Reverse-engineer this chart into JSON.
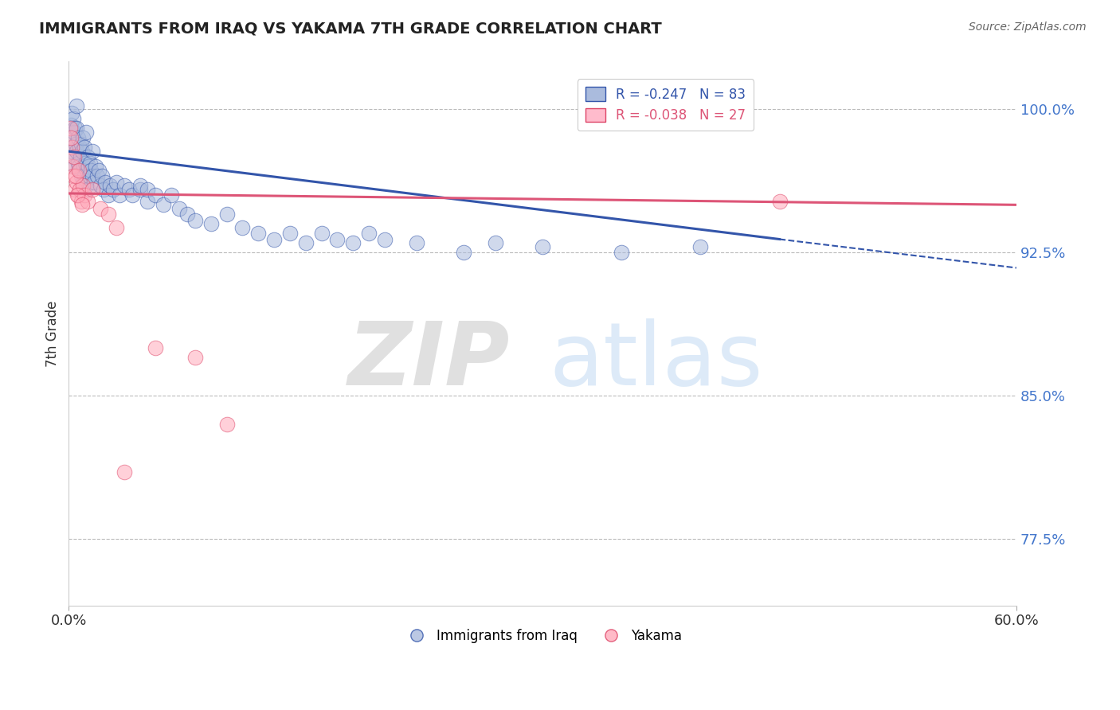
{
  "title": "IMMIGRANTS FROM IRAQ VS YAKAMA 7TH GRADE CORRELATION CHART",
  "source": "Source: ZipAtlas.com",
  "ylabel": "7th Grade",
  "xlim": [
    0.0,
    60.0
  ],
  "ylim": [
    74.0,
    102.5
  ],
  "yticks": [
    77.5,
    85.0,
    92.5,
    100.0
  ],
  "ytick_labels": [
    "77.5%",
    "85.0%",
    "92.5%",
    "100.0%"
  ],
  "legend_blue_label": "R = -0.247   N = 83",
  "legend_pink_label": "R = -0.038   N = 27",
  "bottom_legend_blue": "Immigrants from Iraq",
  "bottom_legend_pink": "Yakama",
  "blue_color": "#aabbdd",
  "blue_edge_color": "#3355aa",
  "pink_color": "#ffaabb",
  "pink_edge_color": "#dd4466",
  "blue_line_color": "#3355aa",
  "pink_line_color": "#dd5577",
  "background_color": "#ffffff",
  "blue_line_x0": 0.0,
  "blue_line_y0": 97.8,
  "blue_line_x1": 45.0,
  "blue_line_y1": 93.2,
  "blue_dash_x0": 45.0,
  "blue_dash_y0": 93.2,
  "blue_dash_x1": 60.0,
  "blue_dash_y1": 91.7,
  "pink_line_x0": 0.0,
  "pink_line_y0": 95.6,
  "pink_line_x1": 60.0,
  "pink_line_y1": 95.0,
  "blue_points_x": [
    0.1,
    0.15,
    0.2,
    0.2,
    0.25,
    0.3,
    0.3,
    0.35,
    0.4,
    0.4,
    0.45,
    0.5,
    0.5,
    0.5,
    0.6,
    0.6,
    0.65,
    0.7,
    0.7,
    0.75,
    0.8,
    0.8,
    0.85,
    0.9,
    0.9,
    0.95,
    1.0,
    1.0,
    1.05,
    1.1,
    1.1,
    1.2,
    1.2,
    1.25,
    1.3,
    1.35,
    1.4,
    1.5,
    1.5,
    1.6,
    1.7,
    1.8,
    1.9,
    2.0,
    2.1,
    2.2,
    2.3,
    2.5,
    2.6,
    2.8,
    3.0,
    3.2,
    3.5,
    3.8,
    4.0,
    4.5,
    4.5,
    5.0,
    5.0,
    5.5,
    6.0,
    6.5,
    7.0,
    7.5,
    8.0,
    9.0,
    10.0,
    11.0,
    12.0,
    13.0,
    14.0,
    15.0,
    16.0,
    17.0,
    18.0,
    19.0,
    20.0,
    22.0,
    25.0,
    27.0,
    30.0,
    35.0,
    40.0
  ],
  "blue_points_y": [
    98.5,
    99.2,
    97.8,
    99.8,
    98.0,
    97.5,
    99.5,
    98.8,
    97.0,
    99.0,
    98.2,
    97.8,
    99.0,
    100.2,
    98.5,
    97.2,
    97.0,
    98.0,
    96.8,
    97.5,
    98.2,
    96.5,
    97.8,
    98.5,
    96.2,
    97.0,
    98.0,
    96.5,
    97.2,
    98.8,
    96.0,
    97.5,
    95.8,
    97.0,
    96.5,
    97.2,
    96.8,
    96.5,
    97.8,
    96.2,
    97.0,
    96.5,
    96.8,
    96.0,
    96.5,
    95.8,
    96.2,
    95.5,
    96.0,
    95.8,
    96.2,
    95.5,
    96.0,
    95.8,
    95.5,
    95.8,
    96.0,
    95.2,
    95.8,
    95.5,
    95.0,
    95.5,
    94.8,
    94.5,
    94.2,
    94.0,
    94.5,
    93.8,
    93.5,
    93.2,
    93.5,
    93.0,
    93.5,
    93.2,
    93.0,
    93.5,
    93.2,
    93.0,
    92.5,
    93.0,
    92.8,
    92.5,
    92.8
  ],
  "pink_points_x": [
    0.1,
    0.2,
    0.25,
    0.3,
    0.35,
    0.4,
    0.5,
    0.6,
    0.7,
    0.8,
    0.9,
    1.0,
    1.2,
    1.5,
    2.0,
    2.5,
    3.0,
    5.5,
    8.0,
    10.0,
    45.0,
    3.5,
    0.15,
    0.45,
    0.55,
    0.65,
    0.85
  ],
  "pink_points_y": [
    99.0,
    98.0,
    97.0,
    96.5,
    97.5,
    95.8,
    96.2,
    95.5,
    95.8,
    95.2,
    96.0,
    95.5,
    95.2,
    95.8,
    94.8,
    94.5,
    93.8,
    87.5,
    87.0,
    83.5,
    95.2,
    81.0,
    98.5,
    96.5,
    95.5,
    96.8,
    95.0
  ]
}
